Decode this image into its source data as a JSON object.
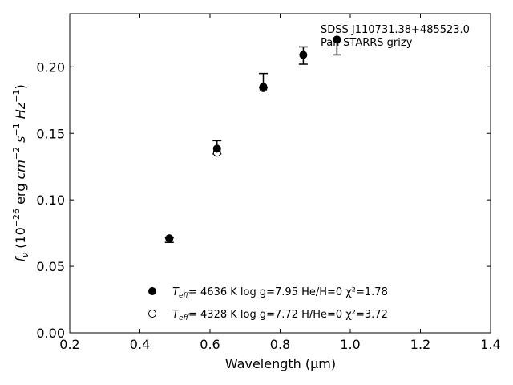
{
  "chart_data": {
    "type": "scatter",
    "xlabel": "Wavelength (μm)",
    "xlim": [
      0.2,
      1.4
    ],
    "ylim": [
      0.0,
      0.24
    ],
    "x_ticks": [
      "0.2",
      "0.4",
      "0.6",
      "0.8",
      "1.0",
      "1.2",
      "1.4"
    ],
    "y_ticks": [
      "0.00",
      "0.05",
      "0.10",
      "0.15",
      "0.20"
    ],
    "annotation": {
      "line1": "SDSS J110731.38+485523.0",
      "line2": "Pan-STARRS grizy"
    },
    "observed": {
      "x": [
        0.484,
        0.62,
        0.752,
        0.866,
        0.962
      ],
      "y": [
        0.071,
        0.1385,
        0.185,
        0.209,
        0.2205
      ],
      "err_low": [
        0.068,
        0.1345,
        0.1845,
        0.202,
        0.209
      ],
      "err_high": [
        0.0715,
        0.1445,
        0.195,
        0.215,
        0.2205
      ]
    },
    "series": [
      {
        "name_prefix": "T",
        "name_sub": "eff",
        "name_rest": "=  4636 K  log g=7.95  He/H=0  χ²=1.78",
        "marker": "filled",
        "x": [
          0.484,
          0.62,
          0.752,
          0.866,
          0.962
        ],
        "y": [
          0.071,
          0.1385,
          0.185,
          0.209,
          0.2205
        ]
      },
      {
        "name_prefix": "T",
        "name_sub": "eff",
        "name_rest": "=  4328 K  log g=7.72  H/He=0  χ²=3.72",
        "marker": "open",
        "x": [
          0.484,
          0.62,
          0.752
        ],
        "y": [
          0.071,
          0.1355,
          0.184
        ]
      }
    ],
    "ylabel": {
      "main": "f",
      "sub": "ν",
      "open": " (10",
      "exp1": "−26",
      "mid1": " erg ",
      "cm": "cm",
      "exp2": "−2",
      "s": " s",
      "exp3": "−1",
      "hz": " Hz",
      "exp4": "−1",
      "close": ")"
    }
  }
}
